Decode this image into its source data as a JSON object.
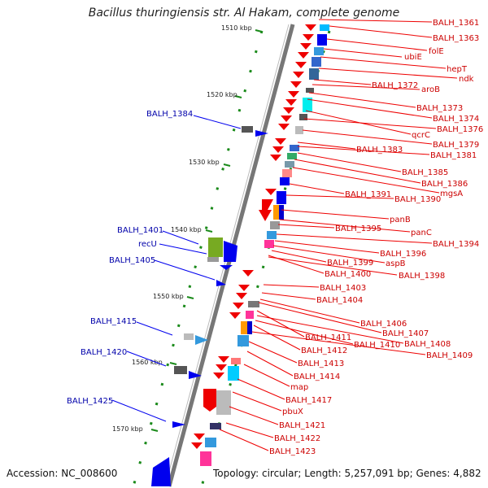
{
  "title": "Bacillus thuringiensis str. Al Hakam, complete genome",
  "footer": {
    "accession": "Accession: NC_008600",
    "topology": "Topology: circular; Length: 5,257,091 bp; Genes: 4,882"
  },
  "ticks": [
    "1510 kbp",
    "1520 kbp",
    "1530 kbp",
    "1540 kbp",
    "1550 kbp",
    "1560 kbp",
    "1570 kbp"
  ],
  "right_labels": [
    "BALH_1361",
    "BALH_1363",
    "folE",
    "ubiE",
    "hepT",
    "ndk",
    "BALH_1372",
    "aroB",
    "BALH_1373",
    "BALH_1374",
    "qcrC",
    "BALH_1376",
    "BALH_1379",
    "BALH_1383",
    "BALH_1381",
    "BALH_1385",
    "BALH_1386",
    "mgsA",
    "BALH_1391",
    "BALH_1390",
    "panB",
    "panC",
    "BALH_1395",
    "BALH_1394",
    "BALH_1396",
    "aspB",
    "BALH_1399",
    "BALH_1400",
    "BALH_1398",
    "BALH_1403",
    "BALH_1404",
    "BALH_1406",
    "BALH_1407",
    "BALH_1411",
    "BALH_1408",
    "BALH_1410",
    "BALH_1412",
    "BALH_1409",
    "BALH_1413",
    "BALH_1414",
    "map",
    "BALH_1417",
    "pbuX",
    "BALH_1421",
    "BALH_1422",
    "BALH_1423"
  ],
  "left_labels": [
    "BALH_1384",
    "BALH_1401",
    "recU",
    "BALH_1405",
    "BALH_1415",
    "BALH_1420",
    "BALH_1425"
  ]
}
